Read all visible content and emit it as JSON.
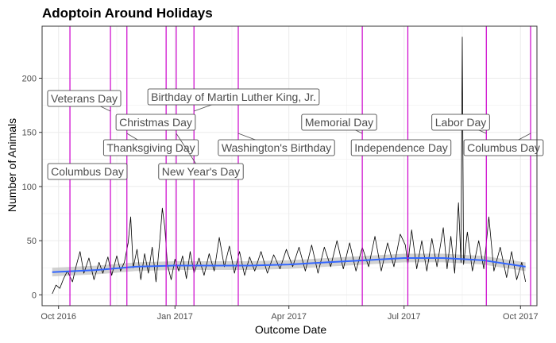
{
  "chart_data": {
    "type": "line",
    "title": "Adoptoin Around Holidays",
    "xlabel": "Outcome Date",
    "ylabel": "Number of Animals",
    "x_range": [
      "2016-09-18",
      "2017-10-14"
    ],
    "ylim": [
      -10,
      248
    ],
    "x_ticks": [
      {
        "date": "2016-10-01",
        "label": "Oct 2016"
      },
      {
        "date": "2017-01-01",
        "label": "Jan 2017"
      },
      {
        "date": "2017-04-01",
        "label": "Apr 2017"
      },
      {
        "date": "2017-07-01",
        "label": "Jul 2017"
      },
      {
        "date": "2017-10-01",
        "label": "Oct 2017"
      }
    ],
    "y_ticks": [
      0,
      50,
      100,
      150,
      200
    ],
    "grid": true,
    "colors": {
      "series": "#000000",
      "smooth": "#3366ff",
      "band": "#bfbfbf",
      "holiday_line": "#cc00cc",
      "grid_major": "#ebebeb",
      "panel_border": "#333333"
    },
    "series": [
      {
        "values": [
          [
            "2016-09-26",
            1
          ],
          [
            "2016-09-29",
            9
          ],
          [
            "2016-10-02",
            6
          ],
          [
            "2016-10-05",
            15
          ],
          [
            "2016-10-08",
            22
          ],
          [
            "2016-10-12",
            12
          ],
          [
            "2016-10-15",
            27
          ],
          [
            "2016-10-18",
            40
          ],
          [
            "2016-10-21",
            20
          ],
          [
            "2016-10-25",
            34
          ],
          [
            "2016-10-29",
            14
          ],
          [
            "2016-11-02",
            30
          ],
          [
            "2016-11-05",
            20
          ],
          [
            "2016-11-09",
            35
          ],
          [
            "2016-11-12",
            18
          ],
          [
            "2016-11-16",
            36
          ],
          [
            "2016-11-19",
            22
          ],
          [
            "2016-11-22",
            30
          ],
          [
            "2016-11-25",
            48
          ],
          [
            "2016-11-27",
            72
          ],
          [
            "2016-11-29",
            25
          ],
          [
            "2016-12-02",
            42
          ],
          [
            "2016-12-05",
            14
          ],
          [
            "2016-12-08",
            38
          ],
          [
            "2016-12-11",
            20
          ],
          [
            "2016-12-14",
            44
          ],
          [
            "2016-12-17",
            12
          ],
          [
            "2016-12-20",
            50
          ],
          [
            "2016-12-22",
            80
          ],
          [
            "2016-12-24",
            62
          ],
          [
            "2016-12-26",
            28
          ],
          [
            "2016-12-29",
            14
          ],
          [
            "2017-01-01",
            33
          ],
          [
            "2017-01-04",
            22
          ],
          [
            "2017-01-07",
            36
          ],
          [
            "2017-01-10",
            15
          ],
          [
            "2017-01-13",
            40
          ],
          [
            "2017-01-16",
            20
          ],
          [
            "2017-01-20",
            34
          ],
          [
            "2017-01-24",
            18
          ],
          [
            "2017-01-28",
            38
          ],
          [
            "2017-02-01",
            22
          ],
          [
            "2017-02-05",
            53
          ],
          [
            "2017-02-09",
            26
          ],
          [
            "2017-02-13",
            45
          ],
          [
            "2017-02-17",
            20
          ],
          [
            "2017-02-21",
            40
          ],
          [
            "2017-02-25",
            18
          ],
          [
            "2017-03-01",
            35
          ],
          [
            "2017-03-05",
            22
          ],
          [
            "2017-03-10",
            40
          ],
          [
            "2017-03-15",
            20
          ],
          [
            "2017-03-20",
            37
          ],
          [
            "2017-03-25",
            24
          ],
          [
            "2017-03-30",
            42
          ],
          [
            "2017-04-04",
            26
          ],
          [
            "2017-04-09",
            44
          ],
          [
            "2017-04-14",
            22
          ],
          [
            "2017-04-19",
            46
          ],
          [
            "2017-04-24",
            20
          ],
          [
            "2017-04-29",
            44
          ],
          [
            "2017-05-04",
            26
          ],
          [
            "2017-05-09",
            50
          ],
          [
            "2017-05-14",
            24
          ],
          [
            "2017-05-19",
            48
          ],
          [
            "2017-05-24",
            22
          ],
          [
            "2017-05-29",
            44
          ],
          [
            "2017-06-03",
            26
          ],
          [
            "2017-06-08",
            54
          ],
          [
            "2017-06-13",
            22
          ],
          [
            "2017-06-18",
            48
          ],
          [
            "2017-06-23",
            26
          ],
          [
            "2017-06-28",
            56
          ],
          [
            "2017-07-02",
            46
          ],
          [
            "2017-07-04",
            28
          ],
          [
            "2017-07-07",
            60
          ],
          [
            "2017-07-11",
            24
          ],
          [
            "2017-07-15",
            50
          ],
          [
            "2017-07-19",
            22
          ],
          [
            "2017-07-23",
            52
          ],
          [
            "2017-07-27",
            26
          ],
          [
            "2017-08-01",
            62
          ],
          [
            "2017-08-04",
            24
          ],
          [
            "2017-08-07",
            54
          ],
          [
            "2017-08-10",
            20
          ],
          [
            "2017-08-13",
            85
          ],
          [
            "2017-08-15",
            30
          ],
          [
            "2017-08-16",
            238
          ],
          [
            "2017-08-17",
            28
          ],
          [
            "2017-08-20",
            58
          ],
          [
            "2017-08-24",
            22
          ],
          [
            "2017-08-29",
            50
          ],
          [
            "2017-09-02",
            24
          ],
          [
            "2017-09-06",
            72
          ],
          [
            "2017-09-10",
            22
          ],
          [
            "2017-09-15",
            44
          ],
          [
            "2017-09-20",
            16
          ],
          [
            "2017-09-24",
            40
          ],
          [
            "2017-09-28",
            14
          ],
          [
            "2017-10-02",
            30
          ],
          [
            "2017-10-05",
            12
          ]
        ]
      }
    ],
    "smooth": {
      "values": [
        [
          "2016-09-26",
          21
        ],
        [
          "2016-11-01",
          23
        ],
        [
          "2016-12-01",
          26
        ],
        [
          "2017-01-01",
          27
        ],
        [
          "2017-02-01",
          27
        ],
        [
          "2017-03-01",
          27
        ],
        [
          "2017-04-01",
          28
        ],
        [
          "2017-05-01",
          30
        ],
        [
          "2017-06-01",
          32
        ],
        [
          "2017-07-01",
          34
        ],
        [
          "2017-08-01",
          34
        ],
        [
          "2017-09-01",
          32
        ],
        [
          "2017-10-05",
          26
        ]
      ],
      "band_half_width": 4
    },
    "holidays": [
      {
        "label": "Columbus Day",
        "date": "2016-10-10"
      },
      {
        "label": "Veterans Day",
        "date": "2016-11-11"
      },
      {
        "label": "Thanksgiving Day",
        "date": "2016-11-24"
      },
      {
        "label": "Christmas Day",
        "date": "2016-12-25"
      },
      {
        "label": "New Year's Day",
        "date": "2017-01-02"
      },
      {
        "label": "Birthday of Martin Luther King, Jr.",
        "date": "2017-01-16"
      },
      {
        "label": "Washington's Birthday",
        "date": "2017-02-20"
      },
      {
        "label": "Memorial Day",
        "date": "2017-05-29"
      },
      {
        "label": "Independence Day",
        "date": "2017-07-04"
      },
      {
        "label": "Labor Day",
        "date": "2017-09-04"
      },
      {
        "label": "Columbus Day",
        "date": "2017-10-09"
      }
    ]
  }
}
